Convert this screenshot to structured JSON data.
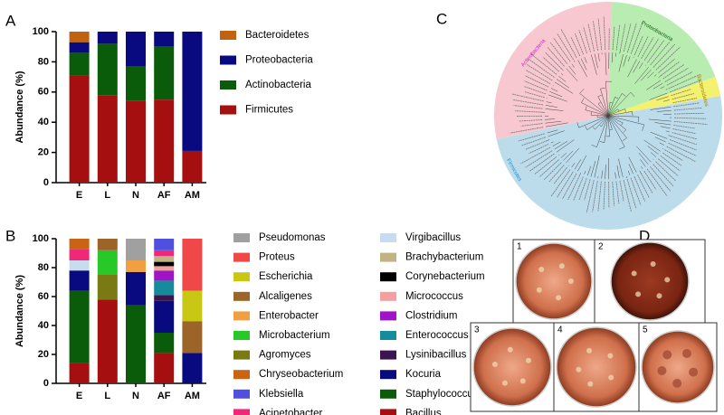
{
  "chart_data": [
    {
      "type": "bar",
      "panel": "A",
      "stacked": true,
      "ylabel": "Abundance (%)",
      "categories": [
        "E",
        "L",
        "N",
        "AF",
        "AM"
      ],
      "ylim": [
        0,
        100
      ],
      "yticks": [
        0,
        20,
        40,
        60,
        80,
        100
      ],
      "grid": false,
      "legend_columns": 1,
      "series": [
        {
          "name": "Bacteroidetes",
          "color": "#c0620f",
          "values": [
            7,
            0,
            0,
            0,
            0
          ]
        },
        {
          "name": "Proteobacteria",
          "color": "#0a0a80",
          "values": [
            7,
            8,
            23,
            10,
            79
          ]
        },
        {
          "name": "Actinobacteria",
          "color": "#0a5c0a",
          "values": [
            15,
            34,
            23,
            35,
            0
          ]
        },
        {
          "name": "Firmicutes",
          "color": "#a50f0f",
          "values": [
            71,
            58,
            54,
            55,
            21
          ]
        }
      ]
    },
    {
      "type": "bar",
      "panel": "B",
      "stacked": true,
      "ylabel": "Abundance (%)",
      "categories": [
        "E",
        "L",
        "N",
        "AF",
        "AM"
      ],
      "ylim": [
        0,
        100
      ],
      "yticks": [
        0,
        20,
        40,
        60,
        80,
        100
      ],
      "grid": false,
      "legend_columns": 2,
      "series": [
        {
          "name": "Pseudomonas",
          "color": "#a0a0a0",
          "values": [
            0,
            0,
            15,
            0,
            0
          ]
        },
        {
          "name": "Proteus",
          "color": "#f04848",
          "values": [
            0,
            0,
            0,
            0,
            36
          ]
        },
        {
          "name": "Escherichia",
          "color": "#c8c814",
          "values": [
            0,
            0,
            0,
            0,
            21
          ]
        },
        {
          "name": "Alcaligenes",
          "color": "#9c6428",
          "values": [
            0,
            8,
            0,
            0,
            22
          ]
        },
        {
          "name": "Enterobacter",
          "color": "#f0a040",
          "values": [
            0,
            0,
            8,
            0,
            0
          ]
        },
        {
          "name": "Microbacterium",
          "color": "#28c828",
          "values": [
            0,
            17,
            0,
            0,
            0
          ]
        },
        {
          "name": "Agromyces",
          "color": "#7a7a14",
          "values": [
            0,
            17,
            0,
            0,
            0
          ]
        },
        {
          "name": "Chryseobacterium",
          "color": "#c86414",
          "values": [
            7,
            0,
            0,
            0,
            0
          ]
        },
        {
          "name": "Klebsiella",
          "color": "#5050e0",
          "values": [
            0,
            0,
            0,
            8,
            0
          ]
        },
        {
          "name": "Acinetobacter",
          "color": "#f0287a",
          "values": [
            8,
            0,
            0,
            4,
            0
          ]
        },
        {
          "name": "Virgibacillus",
          "color": "#c8dcf0",
          "values": [
            7,
            0,
            0,
            0,
            0
          ]
        },
        {
          "name": "Brachybacterium",
          "color": "#c0b484",
          "values": [
            0,
            0,
            0,
            4,
            0
          ]
        },
        {
          "name": "Corynebacterium",
          "color": "#000000",
          "values": [
            0,
            0,
            0,
            3,
            0
          ]
        },
        {
          "name": "Micrococcus",
          "color": "#f4a0a0",
          "values": [
            0,
            0,
            0,
            3,
            0
          ]
        },
        {
          "name": "Clostridium",
          "color": "#a014c8",
          "values": [
            0,
            0,
            0,
            7,
            0
          ]
        },
        {
          "name": "Enterococcus",
          "color": "#148c9c",
          "values": [
            0,
            0,
            0,
            10,
            0
          ]
        },
        {
          "name": "Lysinibacillus",
          "color": "#3c1450",
          "values": [
            0,
            0,
            0,
            4,
            0
          ]
        },
        {
          "name": "Kocuria",
          "color": "#0a0a80",
          "values": [
            14,
            0,
            23,
            22,
            21
          ]
        },
        {
          "name": "Staphylococcus",
          "color": "#0a5c0a",
          "values": [
            50,
            0,
            54,
            14,
            0
          ]
        },
        {
          "name": "Bacillus",
          "color": "#a50f0f",
          "values": [
            14,
            58,
            0,
            21,
            0
          ]
        }
      ]
    }
  ],
  "tree": {
    "panel": "C",
    "clades": [
      {
        "name": "Actinobacteria",
        "color": "#f8c8d0",
        "text_color": "#d020d0"
      },
      {
        "name": "Proteobacteria",
        "color": "#b8ecb0",
        "text_color": "#106010"
      },
      {
        "name": "Bacteroidetes",
        "color": "#f4f070",
        "text_color": "#a08000"
      },
      {
        "name": "Firmicutes",
        "color": "#bcdcec",
        "text_color": "#2090d0"
      }
    ]
  },
  "plates": {
    "panel": "D",
    "labels": [
      "1",
      "2",
      "3",
      "4",
      "5"
    ]
  }
}
